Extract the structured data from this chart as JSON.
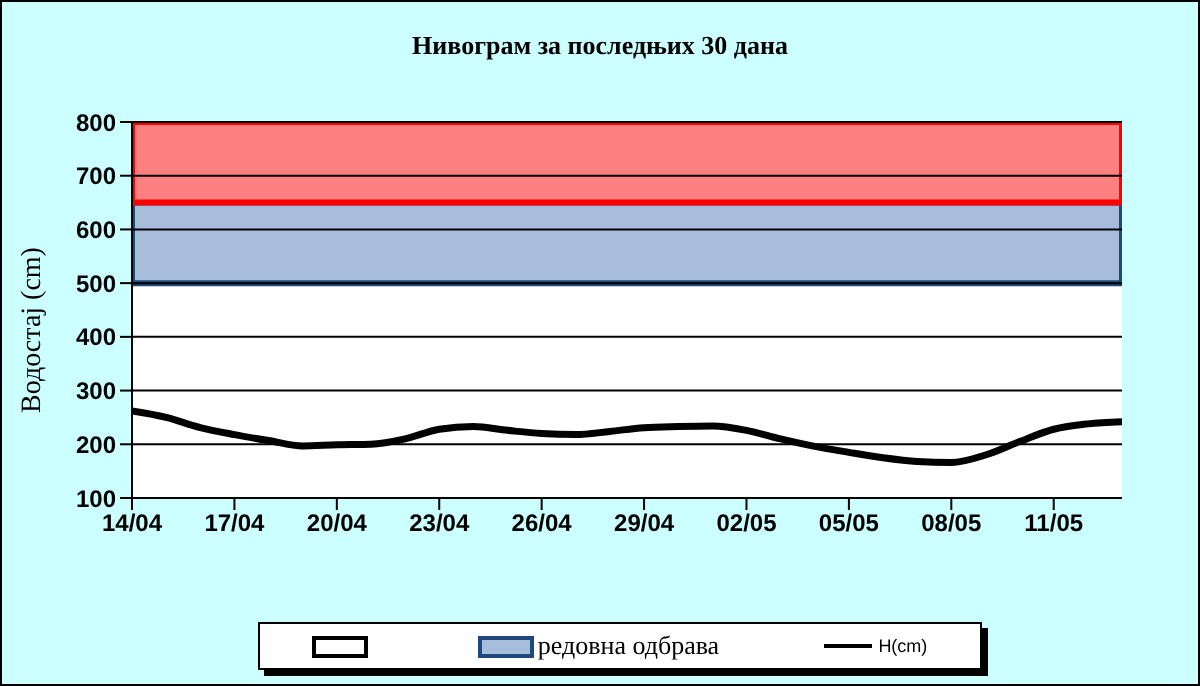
{
  "chart_data": {
    "type": "line",
    "title": "Нивограм за последњих 30 дана",
    "ylabel": "Водостај (cm)",
    "x": [
      "--04-14",
      "--04-15",
      "--04-16",
      "--04-17",
      "--04-18",
      "--04-19",
      "--04-20",
      "--04-21",
      "--04-22",
      "--04-23",
      "--04-24",
      "--04-25",
      "--04-26",
      "--04-27",
      "--04-28",
      "--04-29",
      "--04-30",
      "--05-01",
      "--05-02",
      "--05-03",
      "--05-04",
      "--05-05",
      "--05-06",
      "--05-07",
      "--05-08",
      "--05-09",
      "--05-10",
      "--05-11",
      "--05-12",
      "--05-13"
    ],
    "series": [
      {
        "name": "H(cm)",
        "color": "#000000",
        "values": [
          262,
          250,
          231,
          218,
          207,
          197,
          199,
          200,
          210,
          228,
          233,
          226,
          220,
          218,
          224,
          231,
          233,
          234,
          226,
          210,
          196,
          185,
          175,
          168,
          166,
          180,
          205,
          228,
          238,
          242
        ]
      }
    ],
    "xlim": [
      "--04-14",
      "--05-13"
    ],
    "xticks": [
      {
        "value": "--04-14",
        "label": "14/04"
      },
      {
        "value": "--04-17",
        "label": "17/04"
      },
      {
        "value": "--04-20",
        "label": "20/04"
      },
      {
        "value": "--04-23",
        "label": "23/04"
      },
      {
        "value": "--04-26",
        "label": "26/04"
      },
      {
        "value": "--04-29",
        "label": "29/04"
      },
      {
        "value": "--05-02",
        "label": "02/05"
      },
      {
        "value": "--05-05",
        "label": "05/05"
      },
      {
        "value": "--05-08",
        "label": "08/05"
      },
      {
        "value": "--05-11",
        "label": "11/05"
      }
    ],
    "ylim": [
      100,
      800
    ],
    "yticks": [
      100,
      200,
      300,
      400,
      500,
      600,
      700,
      800
    ],
    "bands": [
      {
        "axis": "y",
        "from": 100,
        "to": 500,
        "label": null,
        "color": "#ffffff"
      },
      {
        "axis": "y",
        "from": 500,
        "to": 650,
        "label": "редовна одбрава",
        "color": "#a6bddb"
      },
      {
        "axis": "y",
        "from": 650,
        "to": 800,
        "color": "#ff8080"
      }
    ],
    "grid": "y",
    "legend": "bottom",
    "marker": "none",
    "line_style": "solid"
  }
}
